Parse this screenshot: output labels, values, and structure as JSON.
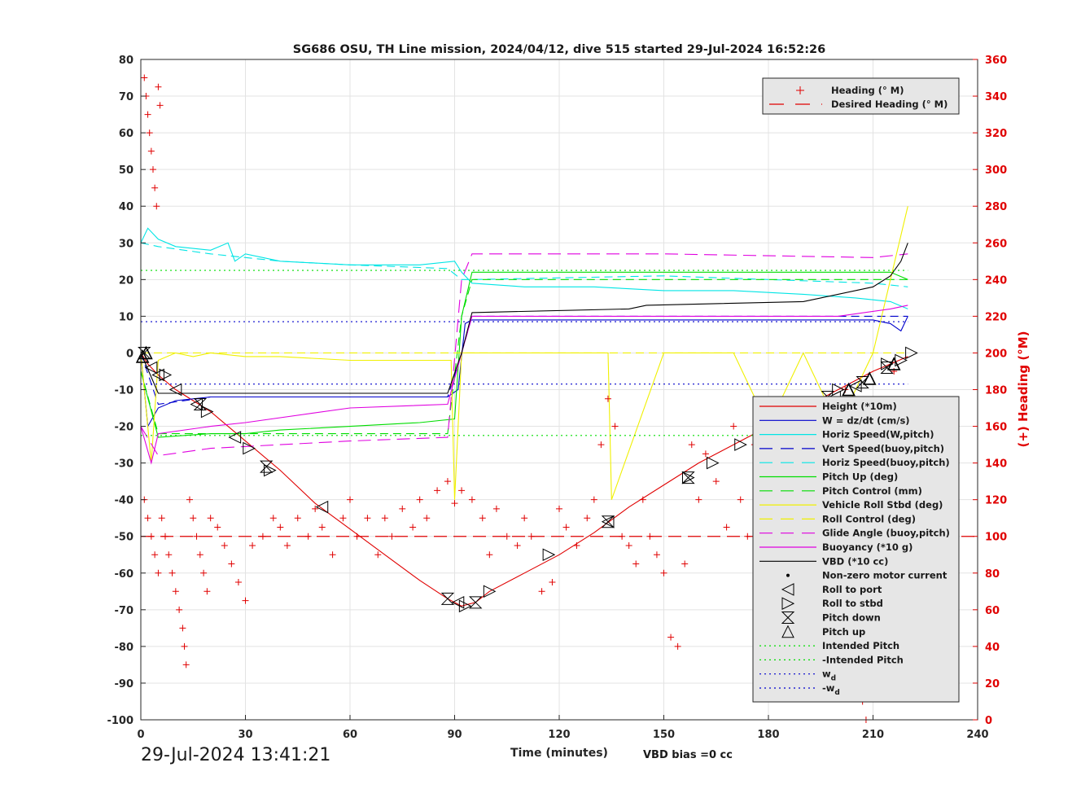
{
  "chart_data": {
    "type": "line",
    "title": "SG686 OSU, TH Line mission, 2024/04/12, dive 515 started 29-Jul-2024 16:52:26",
    "xlabel": "Time (minutes)",
    "ylabel_right": "(+) Heading (°M)",
    "xlim": [
      0,
      240
    ],
    "ylim": [
      -100,
      80
    ],
    "ylim_right": [
      0,
      360
    ],
    "x_ticks": [
      "0",
      "30",
      "60",
      "90",
      "120",
      "150",
      "180",
      "210",
      "240"
    ],
    "y_ticks": [
      "80",
      "70",
      "60",
      "50",
      "40",
      "30",
      "20",
      "10",
      "0",
      "-10",
      "-20",
      "-30",
      "-40",
      "-50",
      "-60",
      "-70",
      "-80",
      "-90",
      "-100"
    ],
    "y_right_ticks": [
      "360",
      "340",
      "320",
      "300",
      "280",
      "260",
      "240",
      "220",
      "200",
      "180",
      "160",
      "140",
      "120",
      "100",
      "80",
      "60",
      "40",
      "20",
      "0"
    ],
    "grid": true,
    "footer_timestamp": "29-Jul-2024 13:41:21",
    "footer_note": "VBD bias =0 cc",
    "heading_legend": [
      {
        "label": "Heading (° M)",
        "color": "#e00000",
        "style": "plus"
      },
      {
        "label": "Desired Heading (° M)",
        "color": "#e00000",
        "style": "dash"
      }
    ],
    "legend": [
      {
        "label": "Height (*10m)",
        "color": "#e00000",
        "style": "line"
      },
      {
        "label": "W = dz/dt (cm/s)",
        "color": "#0000cc",
        "style": "line"
      },
      {
        "label": "Horiz Speed(W,pitch)",
        "color": "#00e5e5",
        "style": "line"
      },
      {
        "label": "Vert Speed(buoy,pitch)",
        "color": "#0000cc",
        "style": "dash"
      },
      {
        "label": "Horiz Speed(buoy,pitch)",
        "color": "#00e5e5",
        "style": "dash"
      },
      {
        "label": "Pitch Up (deg)",
        "color": "#00dd00",
        "style": "line"
      },
      {
        "label": "Pitch Control (mm)",
        "color": "#00dd00",
        "style": "dash"
      },
      {
        "label": "Vehicle Roll Stbd (deg)",
        "color": "#f0f000",
        "style": "line"
      },
      {
        "label": "Roll Control (deg)",
        "color": "#f0f000",
        "style": "dash"
      },
      {
        "label": "Glide Angle (buoy,pitch)",
        "color": "#e000e0",
        "style": "dash"
      },
      {
        "label": "Buoyancy (*10 g)",
        "color": "#e000e0",
        "style": "line"
      },
      {
        "label": "VBD (*10 cc)",
        "color": "#000000",
        "style": "line"
      },
      {
        "label": "Non-zero motor current",
        "color": "#000000",
        "style": "dot"
      },
      {
        "label": "Roll to port",
        "color": "#000000",
        "style": "tri-left"
      },
      {
        "label": "Roll to stbd",
        "color": "#000000",
        "style": "tri-right"
      },
      {
        "label": "Pitch down",
        "color": "#000000",
        "style": "hourglass"
      },
      {
        "label": "Pitch up",
        "color": "#000000",
        "style": "tri-up"
      },
      {
        "label": "Intended Pitch",
        "color": "#00dd00",
        "style": "dotted"
      },
      {
        "label": "-Intended Pitch",
        "color": "#00dd00",
        "style": "dotted"
      },
      {
        "label": "w_d",
        "color": "#0000cc",
        "style": "dotted"
      },
      {
        "label": "-w_d",
        "color": "#0000cc",
        "style": "dotted"
      }
    ],
    "series": [
      {
        "name": "Height (*10m)",
        "color": "#e00000",
        "x": [
          0,
          2,
          5,
          10,
          20,
          30,
          40,
          50,
          60,
          70,
          80,
          88,
          92,
          96,
          100,
          110,
          120,
          130,
          140,
          150,
          160,
          170,
          180,
          190,
          200,
          210,
          215,
          220
        ],
        "y": [
          0,
          -3,
          -6,
          -10,
          -16,
          -24,
          -32,
          -41,
          -48,
          -55,
          -62,
          -67,
          -69,
          -68,
          -65,
          -60,
          -55,
          -49,
          -42,
          -36,
          -30,
          -25,
          -20,
          -15,
          -10,
          -5,
          -3,
          -1
        ]
      },
      {
        "name": "W = dz/dt (cm/s)",
        "color": "#0000cc",
        "x": [
          0,
          2,
          5,
          10,
          20,
          30,
          50,
          70,
          88,
          91,
          93,
          95,
          120,
          150,
          180,
          200,
          210,
          215,
          218,
          220
        ],
        "y": [
          0,
          -20,
          -15,
          -13,
          -12,
          -12,
          -12,
          -12,
          -12,
          -10,
          8,
          9,
          9,
          9,
          9,
          9,
          9,
          8,
          6,
          10
        ]
      },
      {
        "name": "Horiz Speed(W,pitch)",
        "color": "#00e5e5",
        "x": [
          0,
          2,
          5,
          10,
          20,
          25,
          27,
          30,
          40,
          60,
          80,
          90,
          92,
          95,
          110,
          130,
          150,
          170,
          190,
          205,
          215,
          220
        ],
        "y": [
          30,
          34,
          31,
          29,
          28,
          30,
          25,
          27,
          25,
          24,
          24,
          25,
          22,
          19,
          18,
          18,
          17,
          17,
          16,
          15,
          14,
          12
        ]
      },
      {
        "name": "Vert Speed(buoy,pitch)",
        "color": "#0000cc",
        "dash": "10 6",
        "x": [
          0,
          5,
          20,
          40,
          60,
          88,
          92,
          95,
          150,
          210,
          220
        ],
        "y": [
          0,
          -14,
          -12,
          -12,
          -12,
          -12,
          0,
          10,
          10,
          10,
          10
        ]
      },
      {
        "name": "Horiz Speed(buoy,pitch)",
        "color": "#00e5e5",
        "dash": "10 6",
        "x": [
          0,
          5,
          20,
          40,
          60,
          88,
          92,
          95,
          150,
          210,
          220
        ],
        "y": [
          30,
          29,
          27,
          25,
          24,
          23,
          20,
          20,
          21,
          19,
          18
        ]
      },
      {
        "name": "Pitch Up (deg)",
        "color": "#00dd00",
        "x": [
          0,
          5,
          20,
          30,
          40,
          60,
          80,
          90,
          92,
          95,
          120,
          150,
          180,
          210,
          215,
          220
        ],
        "y": [
          -5,
          -23,
          -22,
          -22,
          -21,
          -20,
          -19,
          -18,
          10,
          22,
          22,
          22,
          22,
          22,
          22,
          20
        ]
      },
      {
        "name": "Pitch Control (mm)",
        "color": "#00dd00",
        "dash": "10 6",
        "x": [
          0,
          5,
          20,
          40,
          60,
          88,
          92,
          95,
          150,
          210,
          220
        ],
        "y": [
          -5,
          -22,
          -22,
          -22,
          -22,
          -22,
          10,
          20,
          20,
          20,
          20
        ]
      },
      {
        "name": "Vehicle Roll Stbd (deg)",
        "color": "#f0f000",
        "x": [
          0,
          3,
          5,
          10,
          15,
          20,
          30,
          40,
          60,
          80,
          89,
          90,
          92,
          95,
          120,
          134,
          135,
          150,
          170,
          180,
          190,
          200,
          210,
          220
        ],
        "y": [
          0,
          -30,
          -2,
          0,
          -1,
          0,
          -1,
          -1,
          -2,
          -2,
          -2,
          -40,
          0,
          0,
          0,
          0,
          -40,
          0,
          0,
          -20,
          0,
          -20,
          0,
          40
        ]
      },
      {
        "name": "Roll Control (deg)",
        "color": "#f0f000",
        "dash": "10 6",
        "x": [
          0,
          5,
          40,
          88,
          92,
          150,
          220
        ],
        "y": [
          0,
          0,
          0,
          0,
          0,
          0,
          0
        ]
      },
      {
        "name": "Glide Angle (buoy,pitch)",
        "color": "#e000e0",
        "dash": "16 8",
        "x": [
          0,
          5,
          20,
          40,
          60,
          88,
          92,
          95,
          150,
          210,
          220
        ],
        "y": [
          -20,
          -28,
          -26,
          -25,
          -24,
          -23,
          20,
          27,
          27,
          26,
          27
        ]
      },
      {
        "name": "Buoyancy (*10 g)",
        "color": "#e000e0",
        "x": [
          0,
          3,
          5,
          20,
          30,
          60,
          88,
          92,
          95,
          150,
          200,
          215,
          220
        ],
        "y": [
          -20,
          -30,
          -22,
          -20,
          -19,
          -15,
          -14,
          0,
          10,
          10,
          10,
          12,
          13
        ]
      },
      {
        "name": "VBD (*10 cc)",
        "color": "#000000",
        "x": [
          0,
          5,
          30,
          60,
          88,
          92,
          95,
          140,
          145,
          190,
          195,
          210,
          215,
          218,
          220
        ],
        "y": [
          0,
          -11,
          -11,
          -11,
          -11,
          0,
          11,
          12,
          13,
          14,
          15,
          18,
          21,
          25,
          30
        ]
      },
      {
        "name": "Intended Pitch",
        "color": "#00dd00",
        "dash": "2 4",
        "x": [
          0,
          220
        ],
        "y": [
          22.5,
          22.5
        ]
      },
      {
        "name": "-Intended Pitch",
        "color": "#00dd00",
        "dash": "2 4",
        "x": [
          0,
          220
        ],
        "y": [
          -22.5,
          -22.5
        ]
      },
      {
        "name": "w_d",
        "color": "#0000cc",
        "dash": "2 4",
        "x": [
          0,
          220
        ],
        "y": [
          8.5,
          8.5
        ]
      },
      {
        "name": "-w_d",
        "color": "#0000cc",
        "dash": "2 4",
        "x": [
          0,
          220
        ],
        "y": [
          -8.5,
          -8.5
        ]
      }
    ],
    "desired_heading": 100,
    "heading_points": [
      [
        1,
        350
      ],
      [
        1.5,
        340
      ],
      [
        2,
        330
      ],
      [
        2.5,
        320
      ],
      [
        3,
        310
      ],
      [
        3.5,
        300
      ],
      [
        4,
        290
      ],
      [
        4.5,
        280
      ],
      [
        5,
        345
      ],
      [
        5.5,
        335
      ],
      [
        1,
        120
      ],
      [
        2,
        110
      ],
      [
        3,
        100
      ],
      [
        4,
        90
      ],
      [
        5,
        80
      ],
      [
        6,
        110
      ],
      [
        7,
        100
      ],
      [
        8,
        90
      ],
      [
        9,
        80
      ],
      [
        10,
        70
      ],
      [
        11,
        60
      ],
      [
        12,
        50
      ],
      [
        12.5,
        40
      ],
      [
        13,
        30
      ],
      [
        14,
        120
      ],
      [
        15,
        110
      ],
      [
        16,
        100
      ],
      [
        17,
        90
      ],
      [
        18,
        80
      ],
      [
        19,
        70
      ],
      [
        20,
        110
      ],
      [
        22,
        105
      ],
      [
        24,
        95
      ],
      [
        26,
        85
      ],
      [
        28,
        75
      ],
      [
        30,
        65
      ],
      [
        32,
        95
      ],
      [
        35,
        100
      ],
      [
        38,
        110
      ],
      [
        40,
        105
      ],
      [
        42,
        95
      ],
      [
        45,
        110
      ],
      [
        48,
        100
      ],
      [
        50,
        115
      ],
      [
        52,
        105
      ],
      [
        55,
        90
      ],
      [
        58,
        110
      ],
      [
        60,
        120
      ],
      [
        62,
        100
      ],
      [
        65,
        110
      ],
      [
        68,
        90
      ],
      [
        70,
        110
      ],
      [
        72,
        100
      ],
      [
        75,
        115
      ],
      [
        78,
        105
      ],
      [
        80,
        120
      ],
      [
        82,
        110
      ],
      [
        85,
        125
      ],
      [
        88,
        130
      ],
      [
        90,
        118
      ],
      [
        92,
        125
      ],
      [
        95,
        120
      ],
      [
        98,
        110
      ],
      [
        100,
        90
      ],
      [
        102,
        115
      ],
      [
        105,
        100
      ],
      [
        108,
        95
      ],
      [
        110,
        110
      ],
      [
        112,
        100
      ],
      [
        115,
        70
      ],
      [
        118,
        75
      ],
      [
        120,
        115
      ],
      [
        122,
        105
      ],
      [
        125,
        95
      ],
      [
        128,
        110
      ],
      [
        130,
        120
      ],
      [
        132,
        150
      ],
      [
        134,
        175
      ],
      [
        136,
        160
      ],
      [
        138,
        100
      ],
      [
        140,
        95
      ],
      [
        142,
        85
      ],
      [
        144,
        120
      ],
      [
        146,
        100
      ],
      [
        148,
        90
      ],
      [
        150,
        80
      ],
      [
        152,
        45
      ],
      [
        154,
        40
      ],
      [
        156,
        85
      ],
      [
        158,
        150
      ],
      [
        160,
        120
      ],
      [
        162,
        145
      ],
      [
        165,
        130
      ],
      [
        168,
        105
      ],
      [
        170,
        160
      ],
      [
        172,
        120
      ],
      [
        174,
        100
      ],
      [
        176,
        150
      ],
      [
        178,
        130
      ],
      [
        180,
        95
      ],
      [
        182,
        155
      ],
      [
        184,
        140
      ],
      [
        186,
        110
      ],
      [
        188,
        170
      ],
      [
        190,
        120
      ],
      [
        192,
        100
      ],
      [
        194,
        130
      ],
      [
        196,
        160
      ],
      [
        198,
        90
      ],
      [
        200,
        70
      ],
      [
        202,
        180
      ],
      [
        204,
        150
      ],
      [
        206,
        40
      ],
      [
        207,
        10
      ],
      [
        208,
        0
      ],
      [
        209,
        60
      ],
      [
        210,
        120
      ],
      [
        212,
        150
      ],
      [
        214,
        170
      ],
      [
        216,
        190
      ],
      [
        217,
        65
      ],
      [
        218,
        110
      ],
      [
        219,
        90
      ],
      [
        220,
        70
      ],
      [
        221,
        50
      ]
    ],
    "roll_port_markers": [
      [
        3,
        -4
      ],
      [
        5,
        -6
      ],
      [
        10,
        -10
      ],
      [
        16,
        -14
      ],
      [
        27,
        -23
      ],
      [
        52,
        -42
      ],
      [
        91,
        -68
      ],
      [
        134,
        -46
      ],
      [
        183,
        -20
      ],
      [
        199,
        -12
      ],
      [
        205,
        -9
      ]
    ],
    "roll_stbd_markers": [
      [
        7,
        -6
      ],
      [
        19,
        -16
      ],
      [
        31,
        -26
      ],
      [
        37,
        -32
      ],
      [
        93,
        -69
      ],
      [
        100,
        -65
      ],
      [
        117,
        -55
      ],
      [
        157,
        -34
      ],
      [
        164,
        -30
      ],
      [
        172,
        -25
      ],
      [
        192,
        -15
      ],
      [
        200,
        -10
      ],
      [
        214,
        -3
      ],
      [
        218,
        -2
      ],
      [
        221,
        0
      ]
    ],
    "pitch_down_markers": [
      [
        1,
        0
      ],
      [
        17,
        -14
      ],
      [
        36,
        -31
      ],
      [
        88,
        -67
      ],
      [
        96,
        -68
      ],
      [
        134,
        -46
      ],
      [
        157,
        -34
      ],
      [
        197,
        -12
      ],
      [
        207,
        -8
      ],
      [
        214,
        -4
      ]
    ],
    "pitch_up_markers": [
      [
        0.5,
        -1
      ],
      [
        1.5,
        0
      ],
      [
        203,
        -10
      ],
      [
        209,
        -7
      ],
      [
        216,
        -3
      ]
    ]
  }
}
